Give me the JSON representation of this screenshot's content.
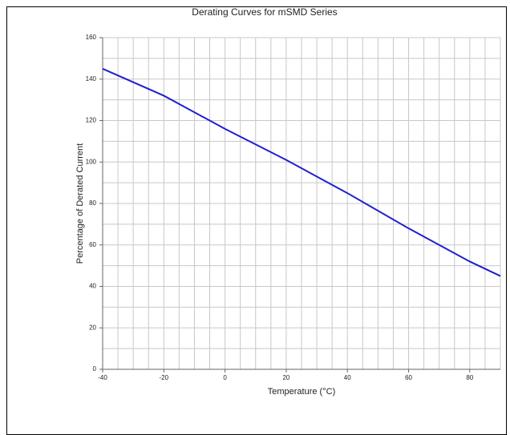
{
  "chart_data": {
    "type": "line",
    "title": "Derating Curves for mSMD Series",
    "x_label": "Temperature (°C)",
    "y_label": "Percentage of Derated Current",
    "x": [
      -40,
      -20,
      0,
      20,
      40,
      60,
      80,
      90
    ],
    "series": [
      {
        "color": "#1f1fd0",
        "values": [
          145,
          132,
          116,
          101,
          85,
          68,
          52,
          45
        ]
      }
    ],
    "xlim": [
      -40,
      90
    ],
    "ylim": [
      0,
      160
    ],
    "xticks": [
      -40,
      -20,
      0,
      20,
      40,
      60,
      80
    ],
    "yticks": [
      0,
      20,
      40,
      60,
      80,
      100,
      120,
      140,
      160
    ],
    "xgrid": [
      -40,
      -35,
      -30,
      -25,
      -20,
      -15,
      -10,
      -5,
      0,
      5,
      10,
      15,
      20,
      25,
      30,
      35,
      40,
      45,
      50,
      55,
      60,
      65,
      70,
      75,
      80,
      85,
      90
    ],
    "ygrid": [
      0,
      10,
      20,
      30,
      40,
      50,
      60,
      70,
      80,
      90,
      100,
      110,
      120,
      130,
      140,
      150,
      160
    ],
    "grid": true
  }
}
